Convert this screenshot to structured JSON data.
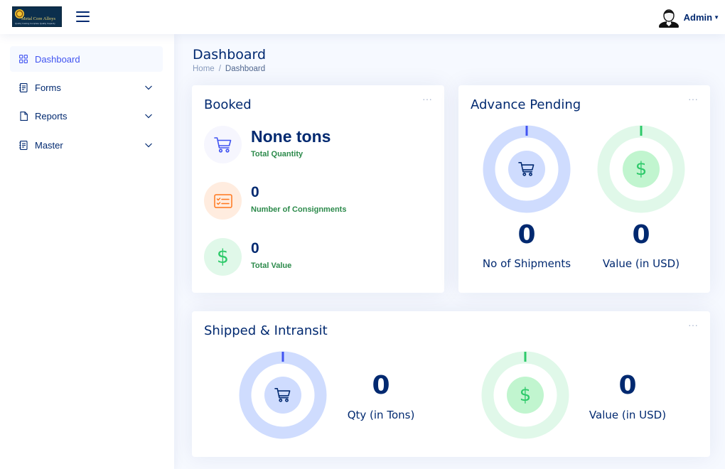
{
  "header": {
    "logo_brand": "Metal Core Alloys",
    "logo_tagline": "Quality Casting Complete Quality Capacity",
    "user_name": "Admin"
  },
  "sidebar": {
    "items": [
      {
        "label": "Dashboard",
        "icon": "grid-icon",
        "active": true
      },
      {
        "label": "Forms",
        "icon": "journal-text-icon",
        "expandable": true
      },
      {
        "label": "Reports",
        "icon": "file-icon",
        "expandable": true
      },
      {
        "label": "Master",
        "icon": "journal-text-icon",
        "expandable": true
      }
    ]
  },
  "page": {
    "title": "Dashboard",
    "breadcrumb": [
      "Home",
      "Dashboard"
    ],
    "breadcrumb_sep": "/"
  },
  "booked": {
    "title": "Booked",
    "menu": "···",
    "rows": [
      {
        "value": "None tons",
        "label": "Total Quantity",
        "icon": "cart-icon"
      },
      {
        "value": "0",
        "label": "Number of Consignments",
        "icon": "card-checklist-icon"
      },
      {
        "value": "0",
        "label": "Total Value",
        "icon": "dollar-icon"
      }
    ]
  },
  "advance_pending": {
    "title": "Advance Pending",
    "menu": "···",
    "stats": [
      {
        "value": "0",
        "label": "No of Shipments",
        "icon": "cart-icon",
        "fraction": 0
      },
      {
        "value": "0",
        "label": "Value (in USD)",
        "icon": "dollar-icon",
        "fraction": 0
      }
    ]
  },
  "shipped": {
    "title": "Shipped & Intransit",
    "menu": "···",
    "stats": [
      {
        "value": "0",
        "label": "Qty (in Tons)",
        "icon": "cart-icon",
        "fraction": 0
      },
      {
        "value": "0",
        "label": "Value (in USD)",
        "icon": "dollar-icon",
        "fraction": 0
      }
    ]
  },
  "colors": {
    "primary": "#4154f1",
    "navy": "#012970",
    "green": "#2eca6a",
    "orange": "#ff771d",
    "ring_blue": "#cfdcfe",
    "ring_green": "#e0f8e9"
  },
  "dollar_glyph": "$"
}
